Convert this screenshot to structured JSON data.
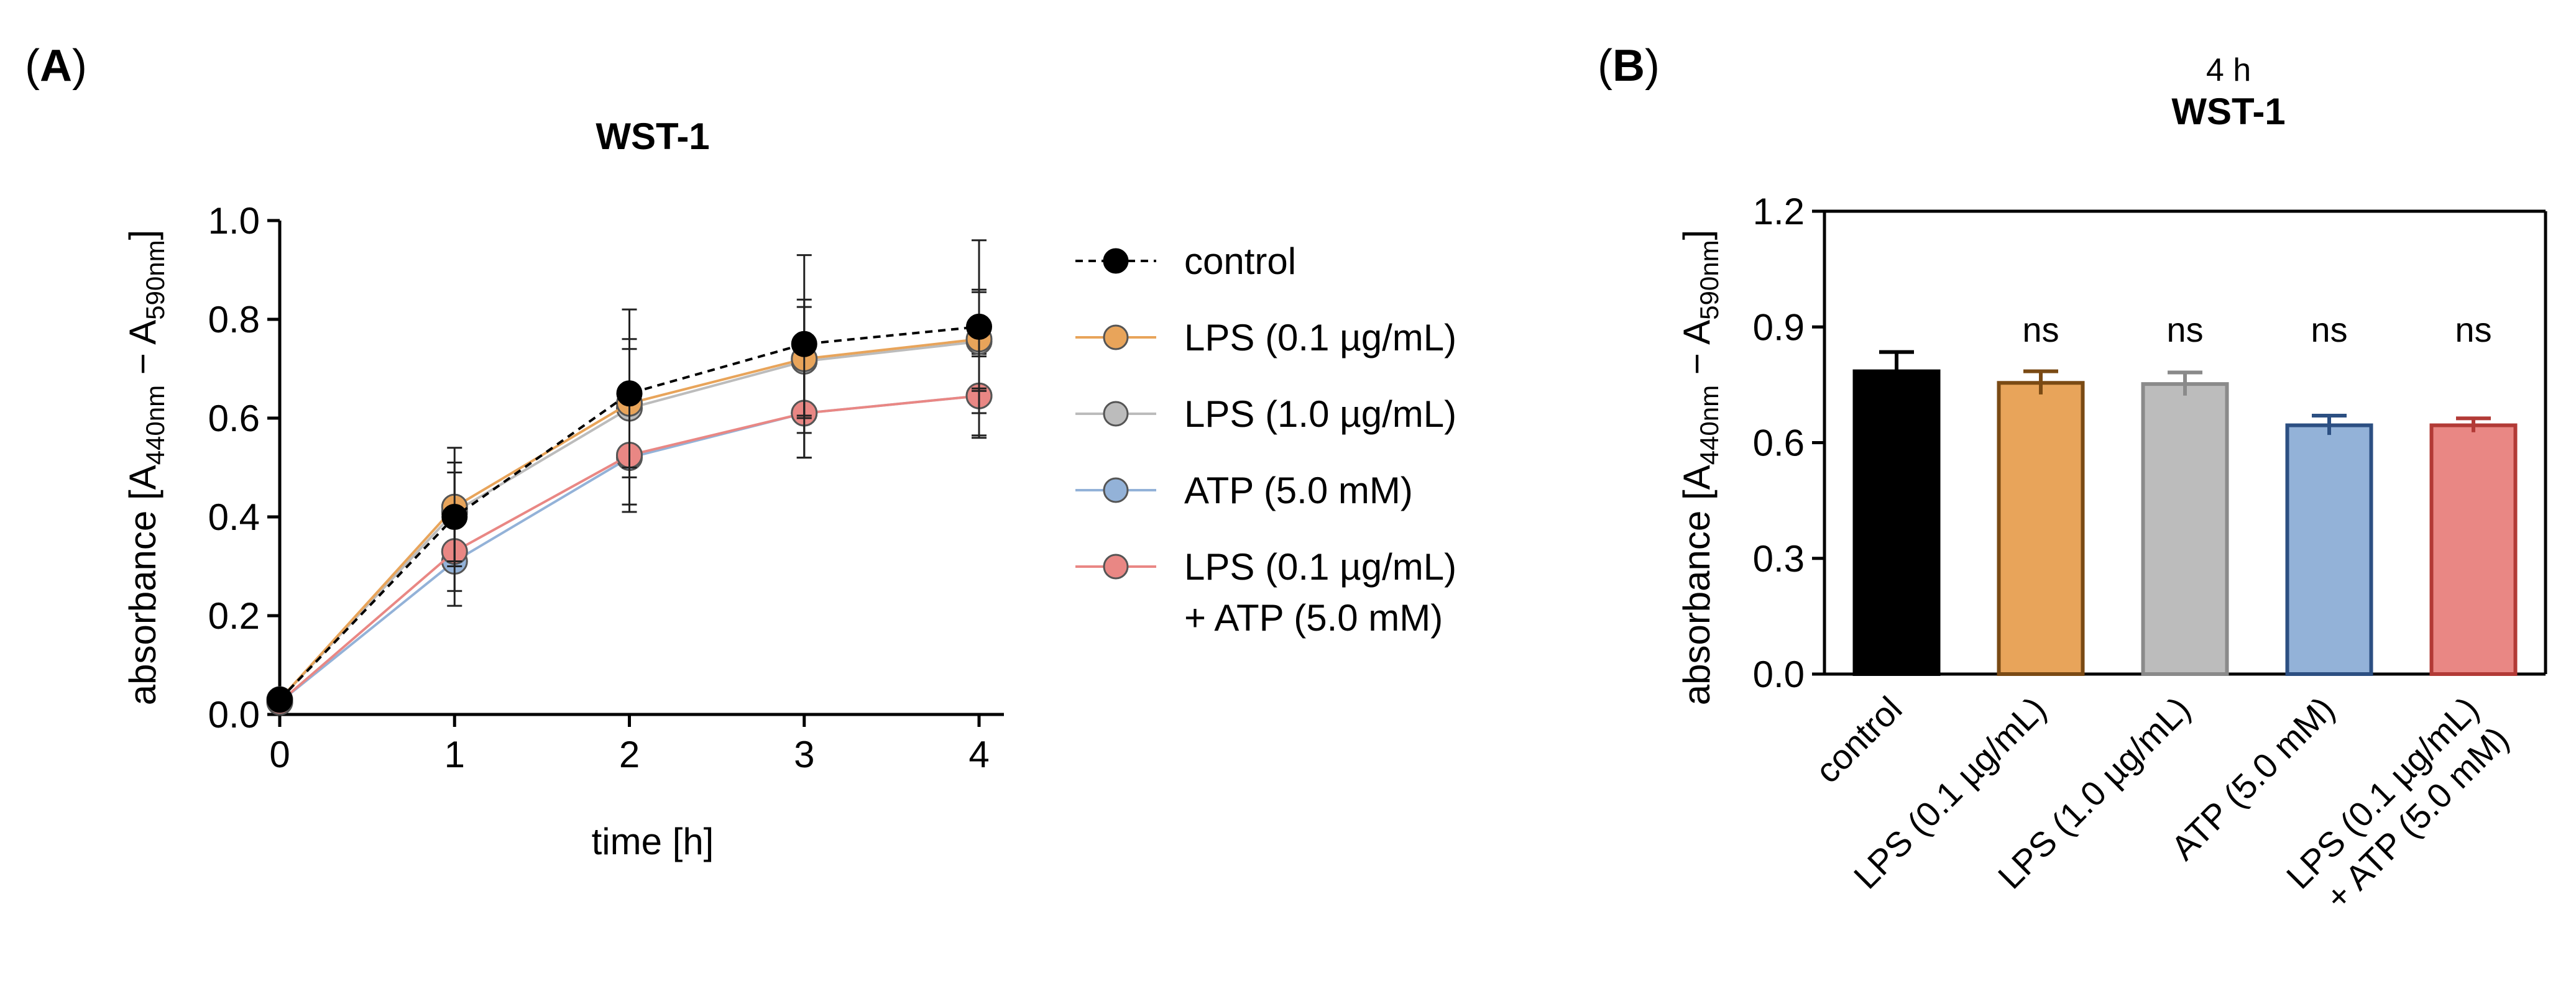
{
  "panels": {
    "a": {
      "letter": "A"
    },
    "b": {
      "letter": "B"
    }
  },
  "colors": {
    "control": "#000000",
    "lps01": "#e8a45a",
    "lps10": "#bcbcbc",
    "atp": "#93b2d8",
    "combo": "#e98784",
    "bar_edge_lps01": "#7a4a14",
    "bar_edge_lps10": "#8a8a8a",
    "bar_edge_atp": "#2c4f82",
    "bar_edge_combo": "#b23a36"
  },
  "chart_data": [
    {
      "type": "line",
      "title": "WST-1",
      "xlabel": "time [h]",
      "ylabel": "absorbance [A440nm − A590nm]",
      "ylabel_parts": {
        "pre": "absorbance [A",
        "sub1": "440nm",
        "mid": " − A",
        "sub2": "590nm",
        "post": "]"
      },
      "x": [
        0,
        1,
        2,
        3,
        4
      ],
      "xlim": [
        0,
        4
      ],
      "ylim": [
        0,
        1.0
      ],
      "xticks": [
        "0",
        "1",
        "2",
        "3",
        "4"
      ],
      "yticks": [
        "0.0",
        "0.2",
        "0.4",
        "0.6",
        "0.8",
        "1.0"
      ],
      "series": [
        {
          "name": "control",
          "legend": [
            "control"
          ],
          "values": [
            0.03,
            0.4,
            0.65,
            0.75,
            0.785
          ],
          "err": [
            0.01,
            0.09,
            0.17,
            0.18,
            0.175
          ],
          "dashed": true
        },
        {
          "name": "lps01",
          "legend": [
            "LPS (0.1 µg/mL)"
          ],
          "values": [
            0.03,
            0.42,
            0.63,
            0.72,
            0.76
          ],
          "err": [
            0.01,
            0.12,
            0.13,
            0.12,
            0.1
          ],
          "dashed": false
        },
        {
          "name": "lps10",
          "legend": [
            "LPS (1.0 µg/mL)"
          ],
          "values": [
            0.03,
            0.41,
            0.62,
            0.715,
            0.755
          ],
          "err": [
            0.01,
            0.1,
            0.12,
            0.11,
            0.1
          ],
          "dashed": false
        },
        {
          "name": "atp",
          "legend": [
            "ATP (5.0 mM)"
          ],
          "values": [
            0.025,
            0.31,
            0.52,
            0.61,
            0.645
          ],
          "err": [
            0.01,
            0.09,
            0.11,
            0.09,
            0.085
          ],
          "dashed": false
        },
        {
          "name": "combo",
          "legend": [
            "LPS (0.1 µg/mL)",
            "+ ATP (5.0 mM)"
          ],
          "values": [
            0.025,
            0.33,
            0.525,
            0.61,
            0.645
          ],
          "err": [
            0.01,
            0.08,
            0.1,
            0.09,
            0.08
          ],
          "dashed": false
        }
      ]
    },
    {
      "type": "bar",
      "subtitle": "4 h",
      "title": "WST-1",
      "ylabel": "absorbance [A440nm − A590nm]",
      "ylim": [
        0,
        1.2
      ],
      "yticks": [
        "0.0",
        "0.3",
        "0.6",
        "0.9",
        "1.2"
      ],
      "categories": [
        [
          "control"
        ],
        [
          "LPS (0.1 µg/mL)"
        ],
        [
          "LPS (1.0 µg/mL)"
        ],
        [
          "ATP (5.0 mM)"
        ],
        [
          "LPS (0.1 µg/mL)",
          "+ ATP (5.0 mM)"
        ]
      ],
      "series_keys": [
        "control",
        "lps01",
        "lps10",
        "atp",
        "combo"
      ],
      "values": [
        0.785,
        0.755,
        0.752,
        0.645,
        0.645
      ],
      "err": [
        0.05,
        0.03,
        0.03,
        0.025,
        0.018
      ],
      "annotations": [
        "",
        "ns",
        "ns",
        "ns",
        "ns"
      ]
    }
  ]
}
